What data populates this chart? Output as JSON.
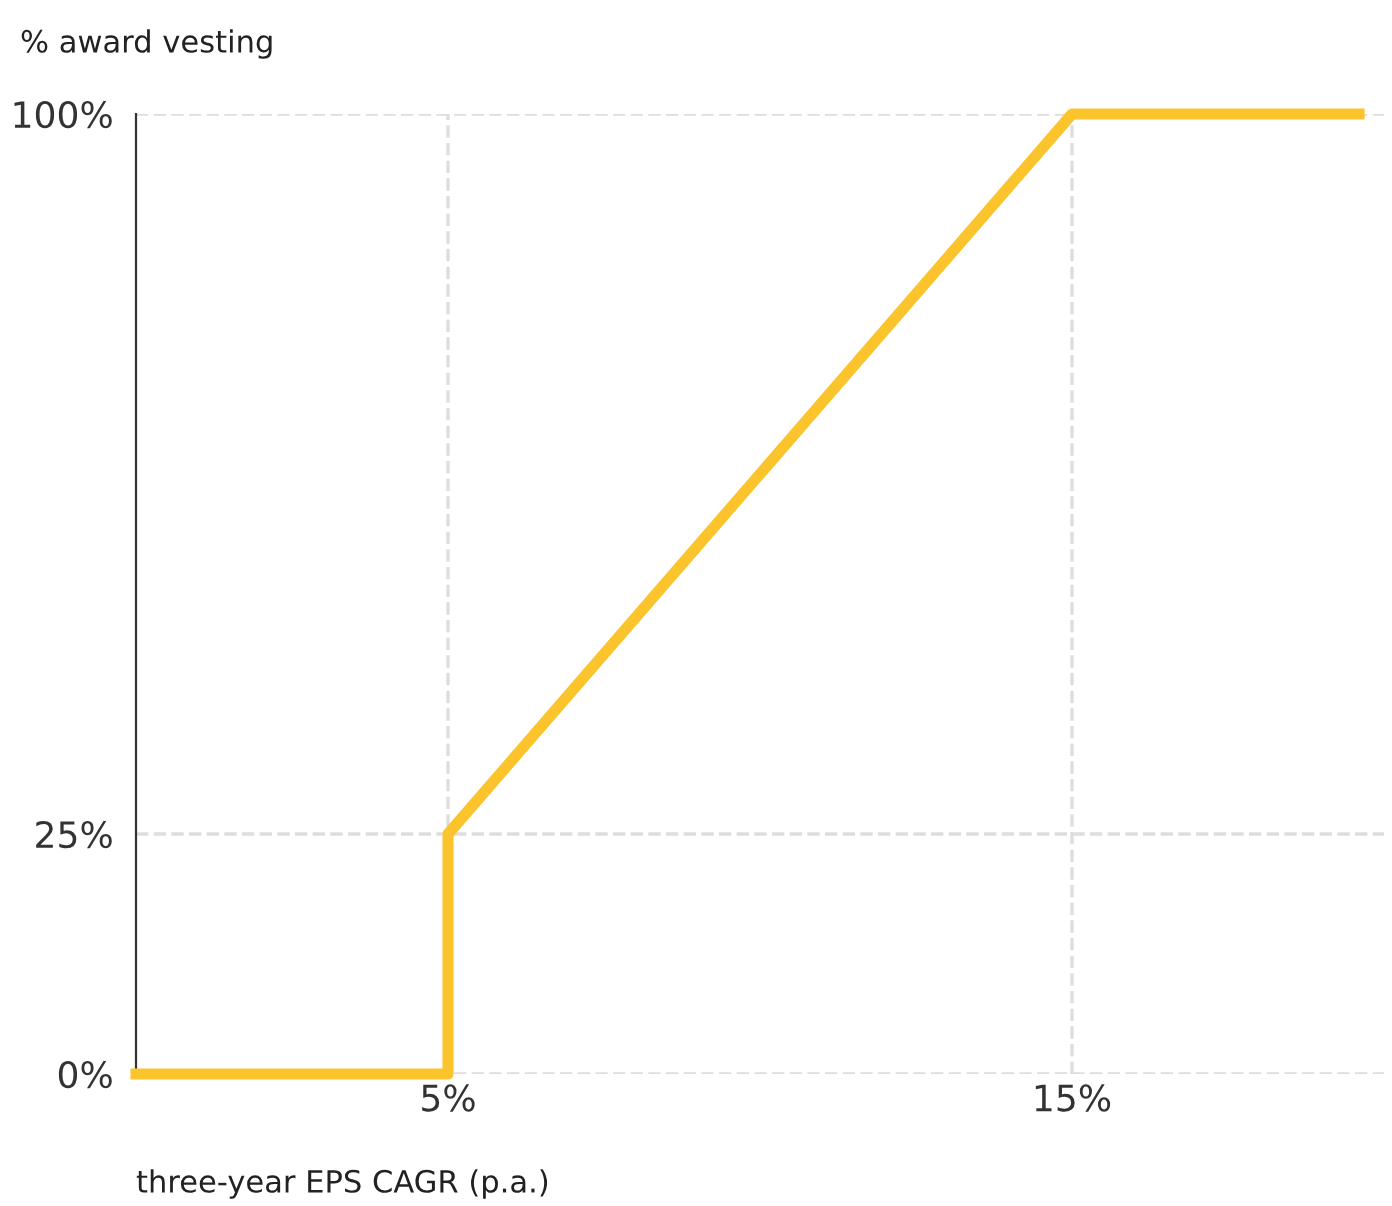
{
  "chart_data": {
    "type": "line",
    "ylabel": "% award vesting",
    "xlabel": "three-year EPS CAGR (p.a.)",
    "x": [
      0,
      5,
      5,
      15,
      19.6
    ],
    "series": [
      {
        "color": "#fcc42c",
        "values": [
          0,
          0,
          25,
          100,
          100
        ]
      }
    ],
    "xlim": [
      0,
      20
    ],
    "ylim": [
      0,
      100
    ],
    "xticks": [
      {
        "value": 5,
        "label": "5%"
      },
      {
        "value": 15,
        "label": "15%"
      }
    ],
    "yticks": [
      {
        "value": 0,
        "label": "0%"
      },
      {
        "value": 25,
        "label": "25%"
      },
      {
        "value": 100,
        "label": "100%"
      }
    ],
    "grid": true,
    "line_style": "solid",
    "marker": "none"
  }
}
